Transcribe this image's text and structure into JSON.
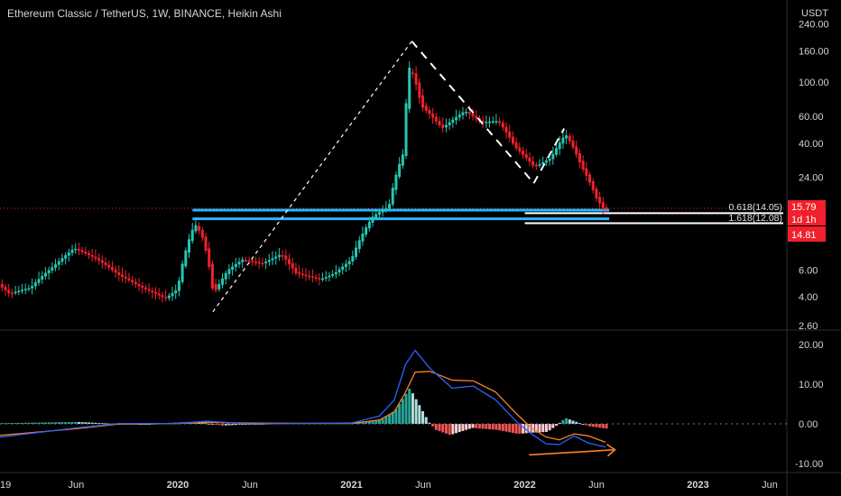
{
  "header": {
    "title": "Ethereum Classic / TetherUS, 1W, BINANCE, Heikin Ashi",
    "currency": "USDT"
  },
  "colors": {
    "up": "#26c6b0",
    "down": "#f0202c",
    "macd": "#2962ff",
    "signal": "#ff7f27",
    "hist_pos_strong": "#26a69a",
    "hist_pos_weak": "#b2dfdb",
    "hist_neg_strong": "#ef5350",
    "hist_neg_weak": "#ffcdd2",
    "level_line": "#29b6f6",
    "price_tag": "#f0202c"
  },
  "tags": {
    "price": "15.79",
    "countdown": "1d 1h",
    "low": "14.81"
  },
  "fib": {
    "a": "0.618(14.05)",
    "b": "1.618(12.08)"
  },
  "chart_data": [
    {
      "type": "candlestick",
      "style": "Heikin Ashi",
      "scale": "log",
      "ylim": [
        2.4,
        300
      ],
      "y_ticks": [
        "240.00",
        "160.00",
        "100.00",
        "60.00",
        "40.00",
        "24.00",
        "6.00",
        "4.00",
        "2.60"
      ],
      "x_ticks": [
        "19",
        "Jun",
        "2020",
        "Jun",
        "2021",
        "Jun",
        "2022",
        "Jun",
        "2023",
        "Jun"
      ],
      "x_tick_dates": [
        "2019-01-01",
        "2019-06-01",
        "2020-01-01",
        "2020-06-01",
        "2021-01-01",
        "2021-06-01",
        "2022-01-01",
        "2022-06-01",
        "2023-01-01",
        "2023-06-01"
      ],
      "price_path": [
        [
          "2018-12-10",
          5.2
        ],
        [
          "2019-01-15",
          4.2
        ],
        [
          "2019-03-01",
          4.6
        ],
        [
          "2019-04-20",
          6.4
        ],
        [
          "2019-06-01",
          8.3
        ],
        [
          "2019-07-20",
          7.0
        ],
        [
          "2019-09-01",
          5.6
        ],
        [
          "2019-10-15",
          4.7
        ],
        [
          "2019-12-10",
          3.9
        ],
        [
          "2020-01-05",
          4.5
        ],
        [
          "2020-02-10",
          12.0
        ],
        [
          "2020-02-25",
          10.0
        ],
        [
          "2020-03-20",
          4.1
        ],
        [
          "2020-04-20",
          6.0
        ],
        [
          "2020-05-20",
          7.0
        ],
        [
          "2020-07-01",
          6.6
        ],
        [
          "2020-08-10",
          7.6
        ],
        [
          "2020-09-10",
          5.7
        ],
        [
          "2020-11-01",
          5.2
        ],
        [
          "2020-12-01",
          5.7
        ],
        [
          "2021-01-05",
          7.0
        ],
        [
          "2021-02-20",
          13.5
        ],
        [
          "2021-03-25",
          15.5
        ],
        [
          "2021-04-25",
          35.0
        ],
        [
          "2021-05-08",
          130.0
        ],
        [
          "2021-06-01",
          70.0
        ],
        [
          "2021-07-15",
          50.0
        ],
        [
          "2021-09-01",
          65.0
        ],
        [
          "2021-10-05",
          55.0
        ],
        [
          "2021-11-10",
          56.0
        ],
        [
          "2021-12-15",
          38.0
        ],
        [
          "2022-01-25",
          28.0
        ],
        [
          "2022-03-01",
          32.0
        ],
        [
          "2022-04-01",
          46.0
        ],
        [
          "2022-05-05",
          28.0
        ],
        [
          "2022-06-05",
          17.5
        ],
        [
          "2022-06-20",
          15.0
        ]
      ],
      "fib_levels": [
        {
          "label": "0.618(14.05)",
          "value": 14.05
        },
        {
          "label": "1.618(12.08)",
          "value": 12.08
        }
      ],
      "drawn_lines": [
        {
          "style": "dashed",
          "from": [
            "2020-03-15",
            3.2
          ],
          "to": [
            "2021-05-08",
            185
          ]
        },
        {
          "style": "dashed",
          "from": [
            "2021-05-08",
            185
          ],
          "to": [
            "2022-01-20",
            22
          ]
        },
        {
          "style": "dashed",
          "from": [
            "2022-01-20",
            22
          ],
          "to": [
            "2022-03-25",
            50
          ]
        }
      ]
    },
    {
      "type": "line+histogram",
      "indicator": "MACD",
      "ylim": [
        -12,
        22
      ],
      "y_ticks": [
        "20.00",
        "10.00",
        "0.00",
        "-10.00"
      ],
      "macd": [
        [
          "2018-12-10",
          -3.5
        ],
        [
          "2019-06-01",
          -1.0
        ],
        [
          "2019-09-01",
          0.1
        ],
        [
          "2020-01-01",
          0.1
        ],
        [
          "2020-03-01",
          0.7
        ],
        [
          "2020-06-01",
          0.0
        ],
        [
          "2021-01-01",
          0.2
        ],
        [
          "2021-03-01",
          2.0
        ],
        [
          "2021-04-01",
          6.0
        ],
        [
          "2021-04-25",
          15.0
        ],
        [
          "2021-05-15",
          18.5
        ],
        [
          "2021-06-15",
          14.0
        ],
        [
          "2021-08-01",
          9.0
        ],
        [
          "2021-09-15",
          9.5
        ],
        [
          "2021-11-01",
          6.0
        ],
        [
          "2021-12-15",
          0.5
        ],
        [
          "2022-01-15",
          -2.5
        ],
        [
          "2022-02-15",
          -5.0
        ],
        [
          "2022-03-15",
          -5.2
        ],
        [
          "2022-04-15",
          -3.0
        ],
        [
          "2022-05-15",
          -4.8
        ],
        [
          "2022-06-20",
          -5.8
        ]
      ],
      "signal": [
        [
          "2018-12-10",
          -3.0
        ],
        [
          "2019-06-01",
          -1.2
        ],
        [
          "2019-09-01",
          0.0
        ],
        [
          "2020-01-01",
          0.1
        ],
        [
          "2020-03-01",
          0.4
        ],
        [
          "2020-06-01",
          0.2
        ],
        [
          "2021-01-01",
          0.1
        ],
        [
          "2021-03-01",
          1.0
        ],
        [
          "2021-04-01",
          3.0
        ],
        [
          "2021-04-25",
          8.0
        ],
        [
          "2021-05-15",
          13.0
        ],
        [
          "2021-06-15",
          13.2
        ],
        [
          "2021-08-01",
          11.0
        ],
        [
          "2021-09-15",
          10.8
        ],
        [
          "2021-11-01",
          8.0
        ],
        [
          "2021-12-15",
          2.5
        ],
        [
          "2022-01-15",
          -1.0
        ],
        [
          "2022-02-15",
          -3.3
        ],
        [
          "2022-03-15",
          -4.0
        ],
        [
          "2022-04-15",
          -2.5
        ],
        [
          "2022-05-15",
          -3.0
        ],
        [
          "2022-06-20",
          -4.6
        ]
      ],
      "histogram_envelope": [
        [
          "2019-01-01",
          0.2
        ],
        [
          "2019-06-01",
          0.5
        ],
        [
          "2019-10-01",
          -0.2
        ],
        [
          "2020-02-01",
          0.6
        ],
        [
          "2020-04-01",
          -0.4
        ],
        [
          "2020-08-01",
          0.2
        ],
        [
          "2021-01-01",
          0.4
        ],
        [
          "2021-03-01",
          1.0
        ],
        [
          "2021-04-01",
          3.5
        ],
        [
          "2021-05-01",
          9.0
        ],
        [
          "2021-05-20",
          5.0
        ],
        [
          "2021-06-10",
          0.5
        ],
        [
          "2021-06-25",
          -1.5
        ],
        [
          "2021-07-25",
          -2.8
        ],
        [
          "2021-09-10",
          -1.0
        ],
        [
          "2021-11-01",
          -1.5
        ],
        [
          "2021-12-15",
          -2.5
        ],
        [
          "2022-01-15",
          -2.2
        ],
        [
          "2022-02-15",
          -2.0
        ],
        [
          "2022-03-05",
          -0.5
        ],
        [
          "2022-03-25",
          1.5
        ],
        [
          "2022-04-15",
          0.6
        ],
        [
          "2022-05-15",
          -0.6
        ],
        [
          "2022-06-20",
          -1.2
        ]
      ],
      "annotation_arrow": {
        "from": [
          "2022-01-10",
          -7.8
        ],
        "to": [
          "2022-07-10",
          -6.5
        ]
      }
    }
  ]
}
